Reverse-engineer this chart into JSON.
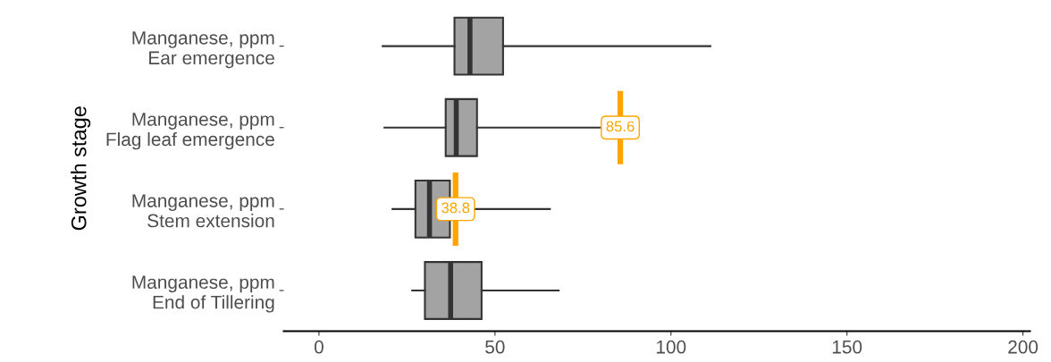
{
  "chart_data": {
    "type": "box",
    "orientation": "horizontal",
    "ylabel": "Growth stage",
    "categories": [
      "Manganese, ppm\nEar emergence",
      "Manganese, ppm\nFlag leaf emergence",
      "Manganese, ppm\nStem extension",
      "Manganese, ppm\nEnd of Tillering"
    ],
    "xlim": [
      -10,
      202
    ],
    "xticks": [
      0,
      50,
      100,
      150,
      200
    ],
    "grid": false,
    "series": [
      {
        "color": "#a3a3a3",
        "boxes": [
          {
            "low": 18.1,
            "q1": 38.5,
            "median": 42.9,
            "q3": 52.3,
            "high": 111.2
          },
          {
            "low": 18.6,
            "q1": 36.0,
            "median": 39.0,
            "q3": 44.9,
            "high": 85.6
          },
          {
            "low": 20.9,
            "q1": 27.4,
            "median": 31.4,
            "q3": 37.2,
            "high": 65.6
          },
          {
            "low": 26.5,
            "q1": 30.1,
            "median": 37.4,
            "q3": 46.2,
            "high": 68.1
          }
        ]
      }
    ],
    "annotations": [
      {
        "text": "85.6",
        "x": 85.6,
        "y": "Manganese, ppm\nFlag leaf emergence"
      },
      {
        "text": "38.8",
        "x": 38.8,
        "y": "Manganese, ppm\nStem extension"
      }
    ],
    "ref_lines": [
      {
        "axis": "x",
        "value": 85.6,
        "color": "#ffa500"
      },
      {
        "axis": "x",
        "value": 38.8,
        "color": "#ffa500"
      }
    ]
  }
}
